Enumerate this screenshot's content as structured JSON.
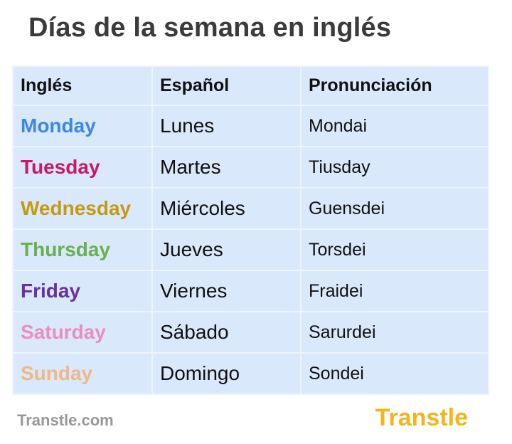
{
  "title": "Días de la semana en inglés",
  "headers": [
    "Inglés",
    "Español",
    "Pronunciación"
  ],
  "rows": [
    {
      "en": "Monday",
      "es": "Lunes",
      "pr": "Mondai",
      "color": "#3f86e6"
    },
    {
      "en": "Tuesday",
      "es": "Martes",
      "pr": "Tiusday",
      "color": "#c8186b"
    },
    {
      "en": "Wednesday",
      "es": "Miércoles",
      "pr": "Guensdei",
      "color": "#c59a12"
    },
    {
      "en": "Thursday",
      "es": "Jueves",
      "pr": "Torsdei",
      "color": "#6ab04c"
    },
    {
      "en": "Friday",
      "es": "Viernes",
      "pr": "Fraidei",
      "color": "#6a2fa0"
    },
    {
      "en": "Saturday",
      "es": "Sábado",
      "pr": "Sarurdei",
      "color": "#e88fc0"
    },
    {
      "en": "Sunday",
      "es": "Domingo",
      "pr": "Sondei",
      "color": "#f0b88a"
    }
  ],
  "footer": {
    "site": "Transtle.com",
    "logo": "Transtle",
    "logo_color": "#f2b51c"
  }
}
